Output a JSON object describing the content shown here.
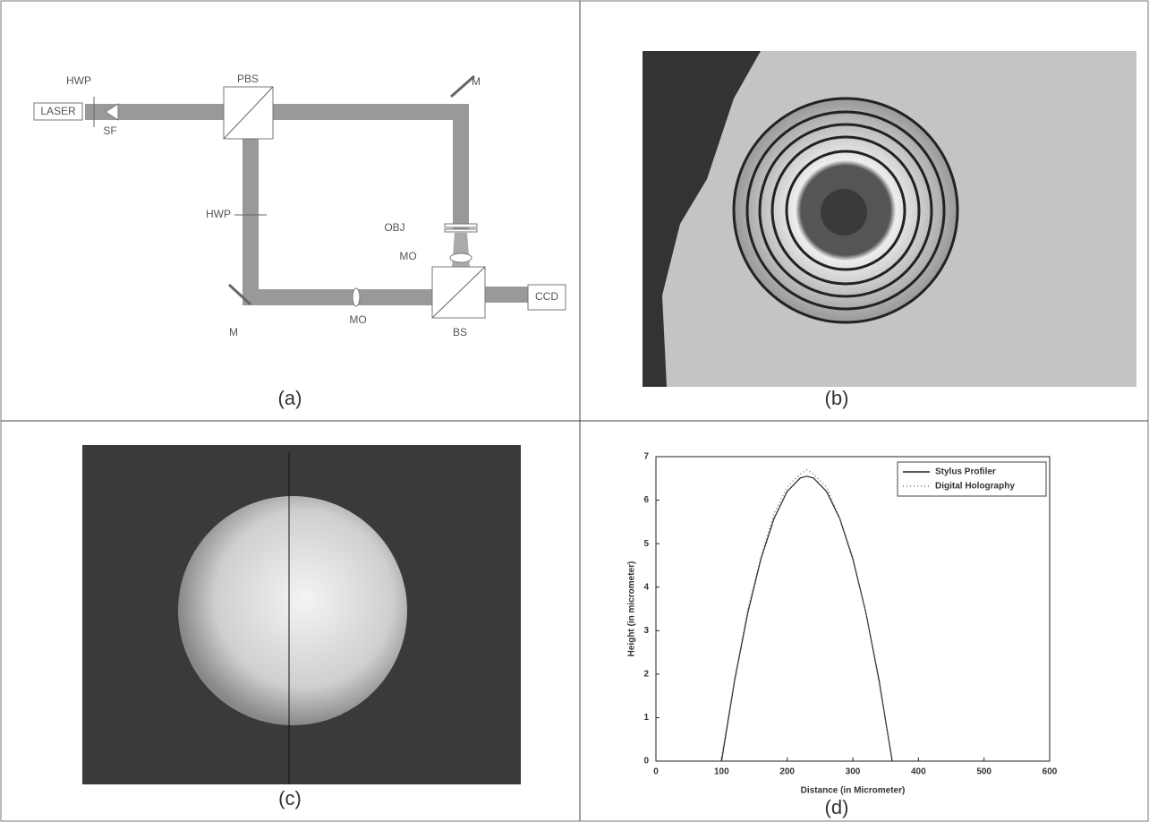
{
  "panels": [
    "(a)",
    "(b)",
    "(c)",
    "(d)"
  ],
  "diagram": {
    "labels": [
      "LASER",
      "HWP",
      "SF",
      "PBS",
      "M",
      "OBJ",
      "MO",
      "HWP",
      "M",
      "MO",
      "BS",
      "CCD"
    ]
  },
  "chart_data": {
    "type": "line",
    "xlabel": "Distance (in Micrometer)",
    "ylabel": "Height (in micrometer)",
    "x": [
      100,
      120,
      140,
      160,
      180,
      200,
      220,
      230,
      240,
      260,
      280,
      300,
      320,
      340,
      360
    ],
    "series": [
      {
        "name": "Stylus Profiler",
        "color": "#222222",
        "values": [
          0,
          1.86,
          3.41,
          4.65,
          5.58,
          6.2,
          6.51,
          6.55,
          6.51,
          6.2,
          5.58,
          4.65,
          3.41,
          1.86,
          0
        ]
      },
      {
        "name": "Digital Holography",
        "color": "#777777",
        "values": [
          0.1,
          1.9,
          3.5,
          4.7,
          5.7,
          6.3,
          6.6,
          6.7,
          6.6,
          6.3,
          5.6,
          4.7,
          3.4,
          1.8,
          0.05
        ]
      }
    ],
    "xlim": [
      0,
      600
    ],
    "xticks": [
      0,
      100,
      200,
      300,
      400,
      500,
      600
    ],
    "ylim": [
      0,
      7
    ],
    "yticks": [
      0,
      1,
      2,
      3,
      4,
      5,
      6,
      7
    ],
    "legend": "upper right"
  }
}
